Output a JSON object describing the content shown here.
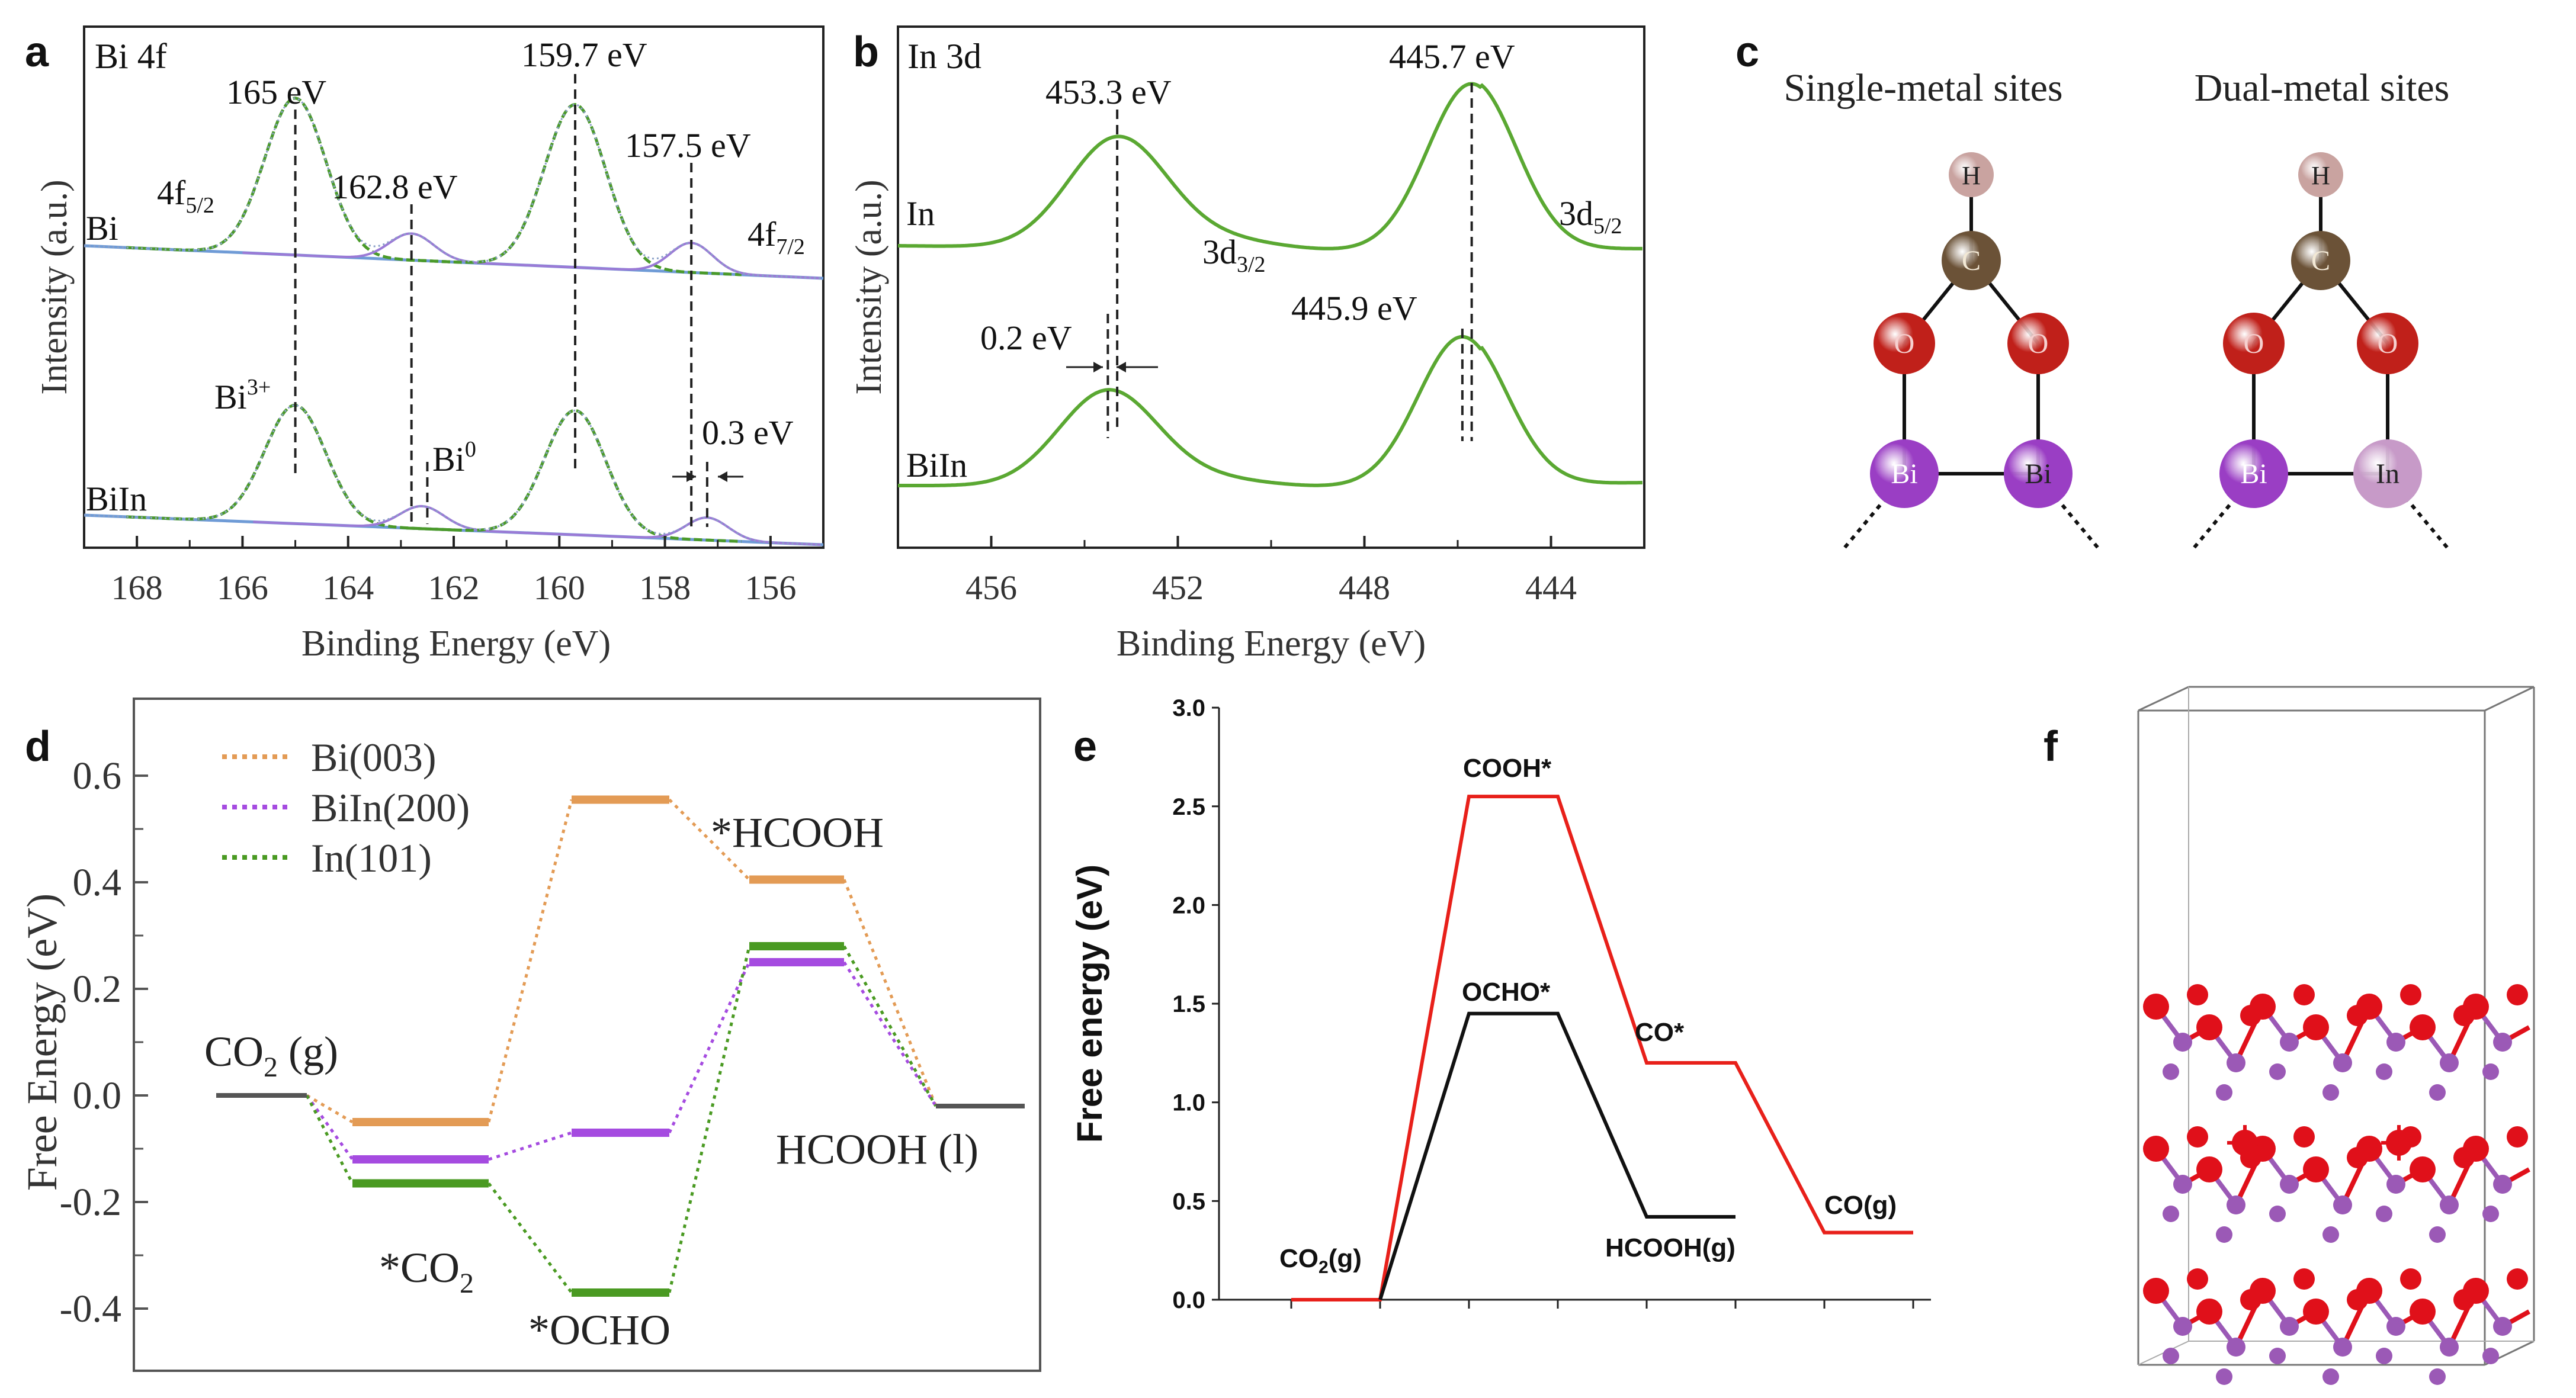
{
  "panels": {
    "a": {
      "letter": "a",
      "corner_label": "Bi 4f",
      "ylabel": "Intensity (a.u.)",
      "xlabel": "Binding Energy (eV)",
      "x_ticks": [
        "168",
        "166",
        "164",
        "162",
        "160",
        "158",
        "156"
      ],
      "sample_top": "Bi",
      "sample_bottom": "BiIn",
      "ann_165": "165 eV",
      "ann_1628": "162.8 eV",
      "ann_1597": "159.7 eV",
      "ann_1575": "157.5 eV",
      "ann_4f52_main": "4f",
      "ann_4f52_sub": "5/2",
      "ann_4f72_main": "4f",
      "ann_4f72_sub": "7/2",
      "ann_bi3_main": "Bi",
      "ann_bi3_sup": "3+",
      "ann_bi0_main": "Bi",
      "ann_bi0_sup": "0",
      "ann_shift": "0.3 eV"
    },
    "b": {
      "letter": "b",
      "corner_label": "In 3d",
      "ylabel": "Intensity (a.u.)",
      "xlabel": "Binding Energy (eV)",
      "x_ticks": [
        "456",
        "452",
        "448",
        "444"
      ],
      "sample_top": "In",
      "sample_bottom": "BiIn",
      "ann_4533": "453.3 eV",
      "ann_4457": "445.7 eV",
      "ann_4459": "445.9 eV",
      "ann_shift": "0.2 eV",
      "ann_3d32_main": "3d",
      "ann_3d32_sub": "3/2",
      "ann_3d52_main": "3d",
      "ann_3d52_sub": "5/2"
    },
    "c": {
      "letter": "c",
      "title_single": "Single-metal sites",
      "title_dual": "Dual-metal sites",
      "atom_h": "H",
      "atom_c": "C",
      "atom_o": "O",
      "atom_bi": "Bi",
      "atom_in": "In",
      "colors": {
        "H": "#c9a3a0",
        "C": "#6b5237",
        "O": "#c0201a",
        "Bi": "#9a3ec4",
        "In": "#c79ac8"
      }
    },
    "d": {
      "letter": "d",
      "ylabel": "Free Energy (eV)",
      "y_ticks": [
        "0.6",
        "0.4",
        "0.2",
        "0.0",
        "-0.2",
        "-0.4"
      ],
      "lbl_co2g_main": "CO",
      "lbl_co2g_sub": "2",
      "lbl_co2g_tail": " (g)",
      "lbl_co2ads_main": "*CO",
      "lbl_co2ads_sub": "2",
      "lbl_ocho": "*OCHO",
      "lbl_hcooh_ads": "*HCOOH",
      "lbl_hcooh_l": "HCOOH (l)"
    },
    "e": {
      "letter": "e",
      "ylabel": "Free energy (eV)",
      "y_ticks": [
        "3.0",
        "2.5",
        "2.0",
        "1.5",
        "1.0",
        "0.5",
        "0.0"
      ],
      "lbl_co2_main": "CO",
      "lbl_co2_sub": "2",
      "lbl_co2_tail": "(g)",
      "lbl_cooh": "COOH*",
      "lbl_ocho": "OCHO*",
      "lbl_co_ads": "CO*",
      "lbl_hcooh": "HCOOH(g)",
      "lbl_co_g": "CO(g)"
    },
    "f": {
      "letter": "f",
      "colors": {
        "O": "#e0101a",
        "Bi": "#9b59b6"
      }
    }
  },
  "chart_data": [
    {
      "panel": "a",
      "type": "line",
      "xlabel": "Binding Energy (eV)",
      "ylabel": "Intensity (a.u.)",
      "xlim": [
        169,
        155
      ],
      "x_reversed": true,
      "series": [
        {
          "name": "Bi",
          "peaks_eV": [
            165.0,
            162.8,
            159.7,
            157.5
          ]
        },
        {
          "name": "BiIn",
          "peaks_eV": [
            165.0,
            162.6,
            159.7,
            157.2
          ]
        }
      ],
      "colors": {
        "data": "#8aa0c8",
        "fit": "#4a9a2a",
        "component": "#9b7ad6",
        "baseline": "#6f9bd6"
      }
    },
    {
      "panel": "b",
      "type": "line",
      "xlabel": "Binding Energy (eV)",
      "ylabel": "Intensity (a.u.)",
      "xlim": [
        458,
        442
      ],
      "x_reversed": true,
      "series": [
        {
          "name": "In",
          "peaks_eV": [
            453.3,
            445.7
          ]
        },
        {
          "name": "BiIn",
          "peaks_eV": [
            453.5,
            445.9
          ]
        }
      ],
      "colors": {
        "line": "#5aa832"
      }
    },
    {
      "panel": "d",
      "type": "line",
      "ylabel": "Free Energy (eV)",
      "ylim": [
        -0.5,
        0.7
      ],
      "categories": [
        "CO2 (g)",
        "*CO2",
        "*OCHO",
        "*HCOOH",
        "HCOOH (l)"
      ],
      "series": [
        {
          "name": "Bi(003)",
          "color": "#e39b55",
          "values": [
            0.0,
            -0.05,
            0.555,
            0.405,
            -0.02
          ]
        },
        {
          "name": "BiIn(200)",
          "color": "#a54be0",
          "values": [
            0.0,
            -0.12,
            -0.07,
            0.25,
            -0.02
          ]
        },
        {
          "name": "In(101)",
          "color": "#4a9a22",
          "values": [
            0.0,
            -0.165,
            -0.37,
            0.28,
            -0.02
          ]
        }
      ],
      "endpoint_color": "#555555"
    },
    {
      "panel": "e",
      "type": "line",
      "ylabel": "Free energy (eV)",
      "ylim": [
        0.0,
        3.0
      ],
      "series": [
        {
          "color": "#e8201a",
          "steps": [
            {
              "label": "CO2(g)",
              "value": 0.0
            },
            {
              "label": "COOH*",
              "value": 2.55
            },
            {
              "label": "CO*",
              "value": 1.2
            },
            {
              "label": "CO(g)",
              "value": 0.34
            }
          ]
        },
        {
          "color": "#111111",
          "steps": [
            {
              "label": "OCHO*",
              "value": 1.45
            },
            {
              "label": "HCOOH(g)",
              "value": 0.42
            }
          ]
        }
      ]
    }
  ]
}
